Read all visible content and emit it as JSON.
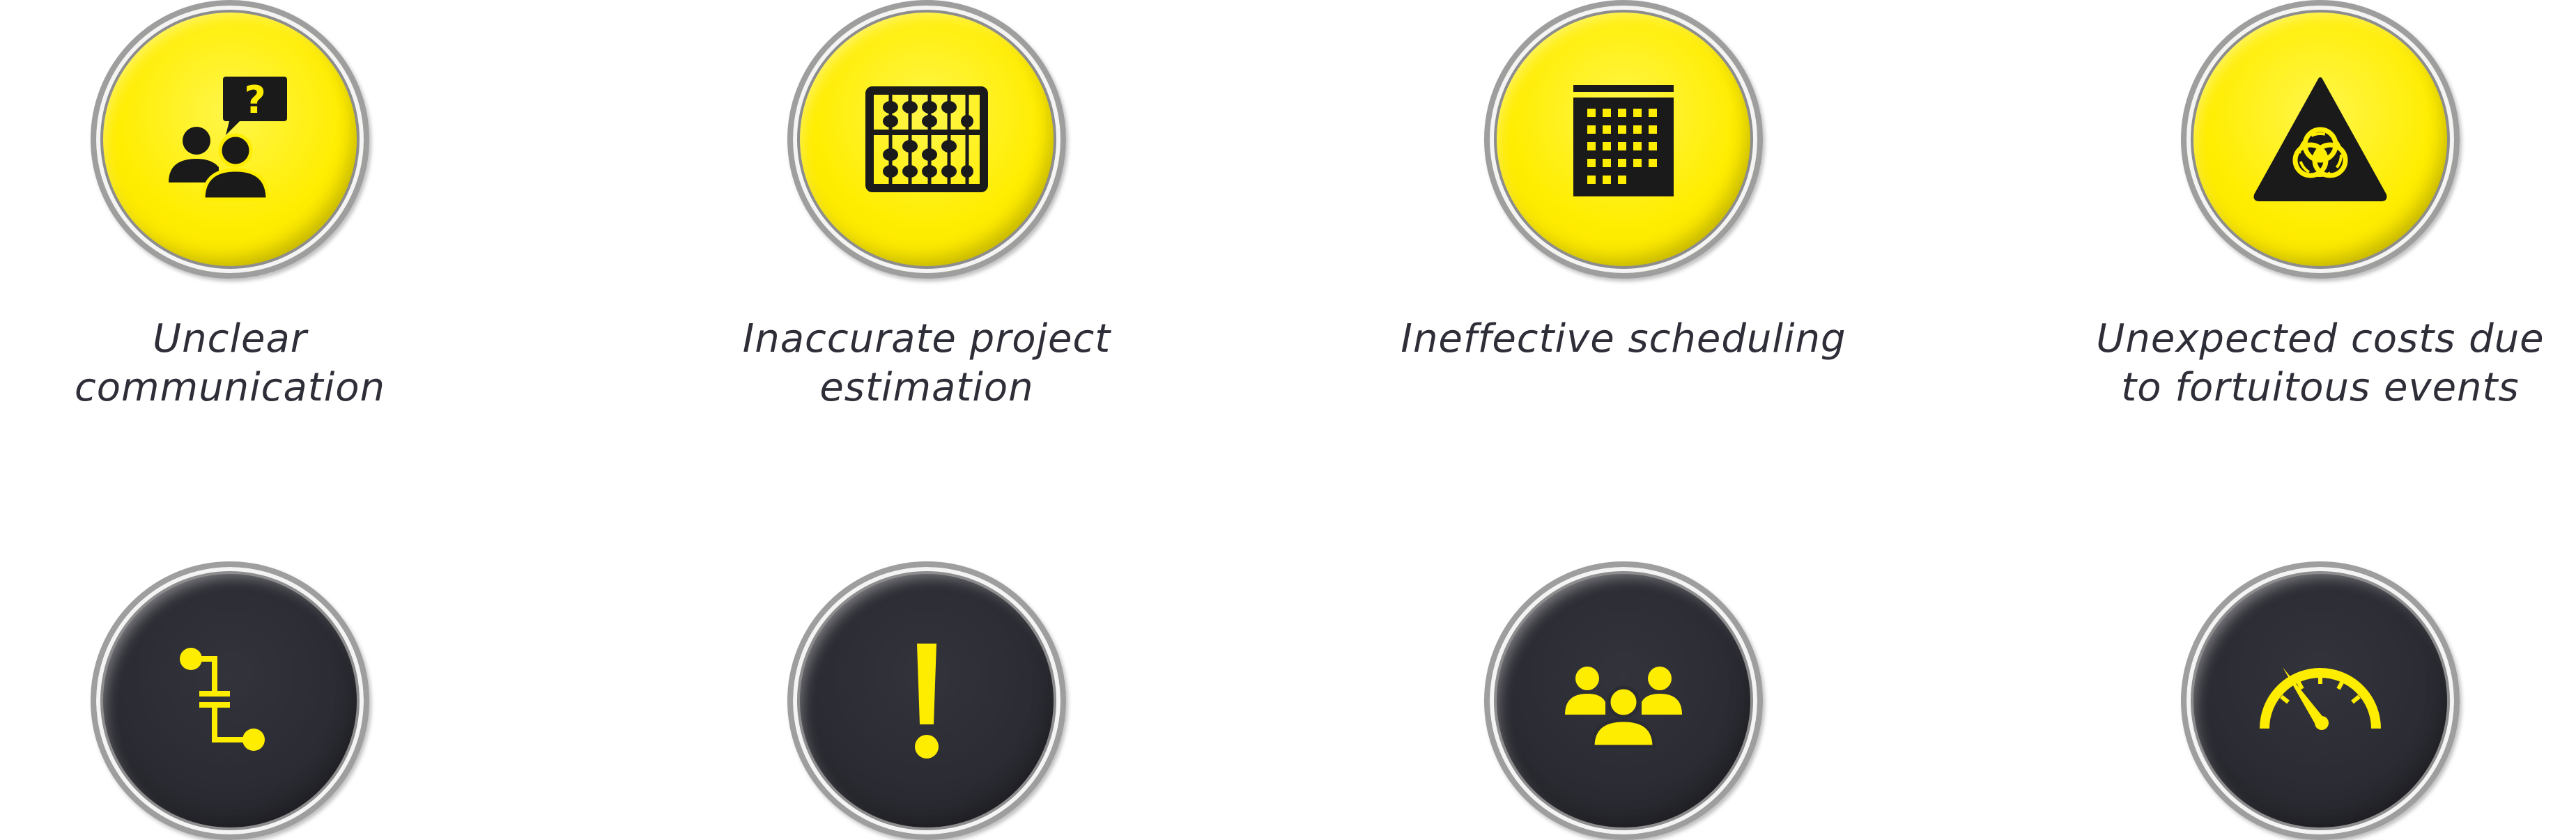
{
  "colors": {
    "yellow": "#ffed00",
    "dark": "#2b2b33",
    "text": "#2e2e38"
  },
  "items": [
    {
      "icon": "people-question-icon",
      "style": "yellow",
      "caption_lines": [
        "Unclear",
        "communication"
      ]
    },
    {
      "icon": "abacus-icon",
      "style": "yellow",
      "caption_lines": [
        "Inaccurate project",
        "estimation"
      ]
    },
    {
      "icon": "calendar-icon",
      "style": "yellow",
      "caption_lines": [
        "Ineffective scheduling"
      ]
    },
    {
      "icon": "biohazard-warning-icon",
      "style": "yellow",
      "caption_lines": [
        "Unexpected costs due",
        "to fortuitous events"
      ]
    },
    {
      "icon": "process-flow-icon",
      "style": "dark",
      "caption_lines": []
    },
    {
      "icon": "exclamation-icon",
      "style": "dark",
      "caption_lines": []
    },
    {
      "icon": "group-icon",
      "style": "dark",
      "caption_lines": []
    },
    {
      "icon": "speedometer-icon",
      "style": "dark",
      "caption_lines": []
    }
  ]
}
